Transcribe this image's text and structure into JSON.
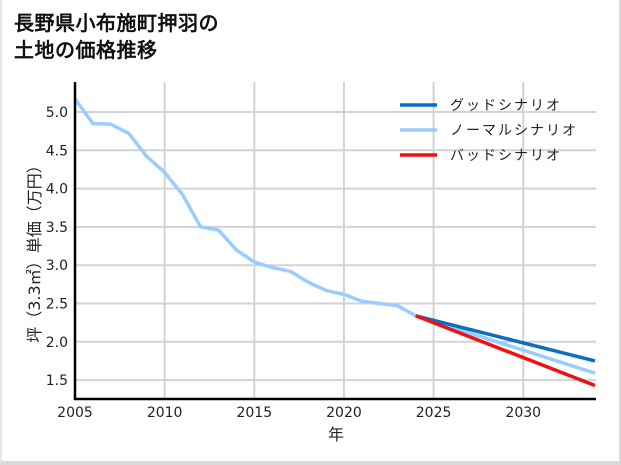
{
  "title": {
    "line1": "長野県小布施町押羽の",
    "line2": "土地の価格推移"
  },
  "colors": {
    "good": "#0a6fc2",
    "normal": "#99ccff",
    "bad": "#ee1111",
    "grid": "#d3d3d3",
    "axis": "#000000"
  },
  "chart_data": {
    "type": "line",
    "title": "長野県小布施町押羽の土地の価格推移",
    "xlabel": "年",
    "ylabel": "坪（3.3㎡）単価（万円）",
    "xlim": [
      2005,
      2034
    ],
    "ylim": [
      1.25,
      5.4
    ],
    "x_ticks": [
      2005,
      2010,
      2015,
      2020,
      2025,
      2030
    ],
    "y_ticks": [
      1.5,
      2.0,
      2.5,
      3.0,
      3.5,
      4.0,
      4.5,
      5.0
    ],
    "y_tick_labels": [
      "1.5",
      "2.0",
      "2.5",
      "3.0",
      "3.5",
      "4.0",
      "4.5",
      "5.0"
    ],
    "grid": true,
    "legend_position": "upper right",
    "series": [
      {
        "name": "グッドシナリオ",
        "color": "#0a6fc2",
        "x": [
          2024,
          2034
        ],
        "values": [
          2.34,
          1.75
        ]
      },
      {
        "name": "ノーマルシナリオ",
        "color": "#99ccff",
        "x": [
          2005,
          2006,
          2007,
          2008,
          2009,
          2010,
          2011,
          2012,
          2013,
          2014,
          2015,
          2016,
          2017,
          2018,
          2019,
          2020,
          2021,
          2022,
          2023,
          2024,
          2034
        ],
        "values": [
          5.17,
          4.85,
          4.84,
          4.72,
          4.42,
          4.21,
          3.92,
          3.5,
          3.46,
          3.2,
          3.04,
          2.97,
          2.92,
          2.78,
          2.67,
          2.62,
          2.53,
          2.5,
          2.47,
          2.34,
          1.59
        ]
      },
      {
        "name": "バッドシナリオ",
        "color": "#ee1111",
        "x": [
          2024,
          2034
        ],
        "values": [
          2.34,
          1.43
        ]
      }
    ]
  }
}
